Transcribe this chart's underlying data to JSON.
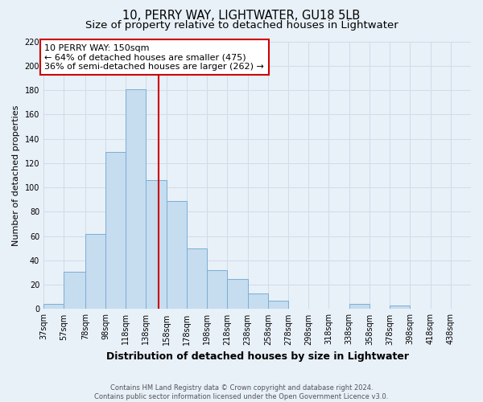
{
  "title": "10, PERRY WAY, LIGHTWATER, GU18 5LB",
  "subtitle": "Size of property relative to detached houses in Lightwater",
  "xlabel": "Distribution of detached houses by size in Lightwater",
  "ylabel": "Number of detached properties",
  "bar_left_edges": [
    37,
    57,
    78,
    98,
    118,
    138,
    158,
    178,
    198,
    218,
    238,
    258,
    278,
    298,
    318,
    338,
    358,
    378,
    398,
    418
  ],
  "bar_widths": [
    20,
    21,
    20,
    20,
    20,
    20,
    20,
    20,
    20,
    20,
    20,
    20,
    20,
    20,
    20,
    20,
    20,
    20,
    20,
    20
  ],
  "bar_heights": [
    4,
    31,
    62,
    129,
    181,
    106,
    89,
    50,
    32,
    25,
    13,
    7,
    0,
    0,
    0,
    4,
    0,
    3,
    0,
    0
  ],
  "bar_color": "#c6dcef",
  "bar_edge_color": "#7aafd4",
  "vline_x": 150,
  "vline_color": "#cc0000",
  "annotation_line1": "10 PERRY WAY: 150sqm",
  "annotation_line2": "← 64% of detached houses are smaller (475)",
  "annotation_line3": "36% of semi-detached houses are larger (262) →",
  "annotation_box_facecolor": "#ffffff",
  "annotation_box_edgecolor": "#cc0000",
  "ylim": [
    0,
    220
  ],
  "yticks": [
    0,
    20,
    40,
    60,
    80,
    100,
    120,
    140,
    160,
    180,
    200,
    220
  ],
  "xtick_labels": [
    "37sqm",
    "57sqm",
    "78sqm",
    "98sqm",
    "118sqm",
    "138sqm",
    "158sqm",
    "178sqm",
    "198sqm",
    "218sqm",
    "238sqm",
    "258sqm",
    "278sqm",
    "298sqm",
    "318sqm",
    "338sqm",
    "358sqm",
    "378sqm",
    "398sqm",
    "418sqm",
    "438sqm"
  ],
  "xtick_positions": [
    37,
    57,
    78,
    98,
    118,
    138,
    158,
    178,
    198,
    218,
    238,
    258,
    278,
    298,
    318,
    338,
    358,
    378,
    398,
    418,
    438
  ],
  "xlim_left": 37,
  "xlim_right": 458,
  "grid_color": "#d0dce8",
  "background_color": "#e8f0f8",
  "footer_text": "Contains HM Land Registry data © Crown copyright and database right 2024.\nContains public sector information licensed under the Open Government Licence v3.0.",
  "title_fontsize": 10.5,
  "subtitle_fontsize": 9.5,
  "xlabel_fontsize": 9,
  "ylabel_fontsize": 8,
  "tick_fontsize": 7,
  "footer_fontsize": 6,
  "annotation_fontsize": 8
}
